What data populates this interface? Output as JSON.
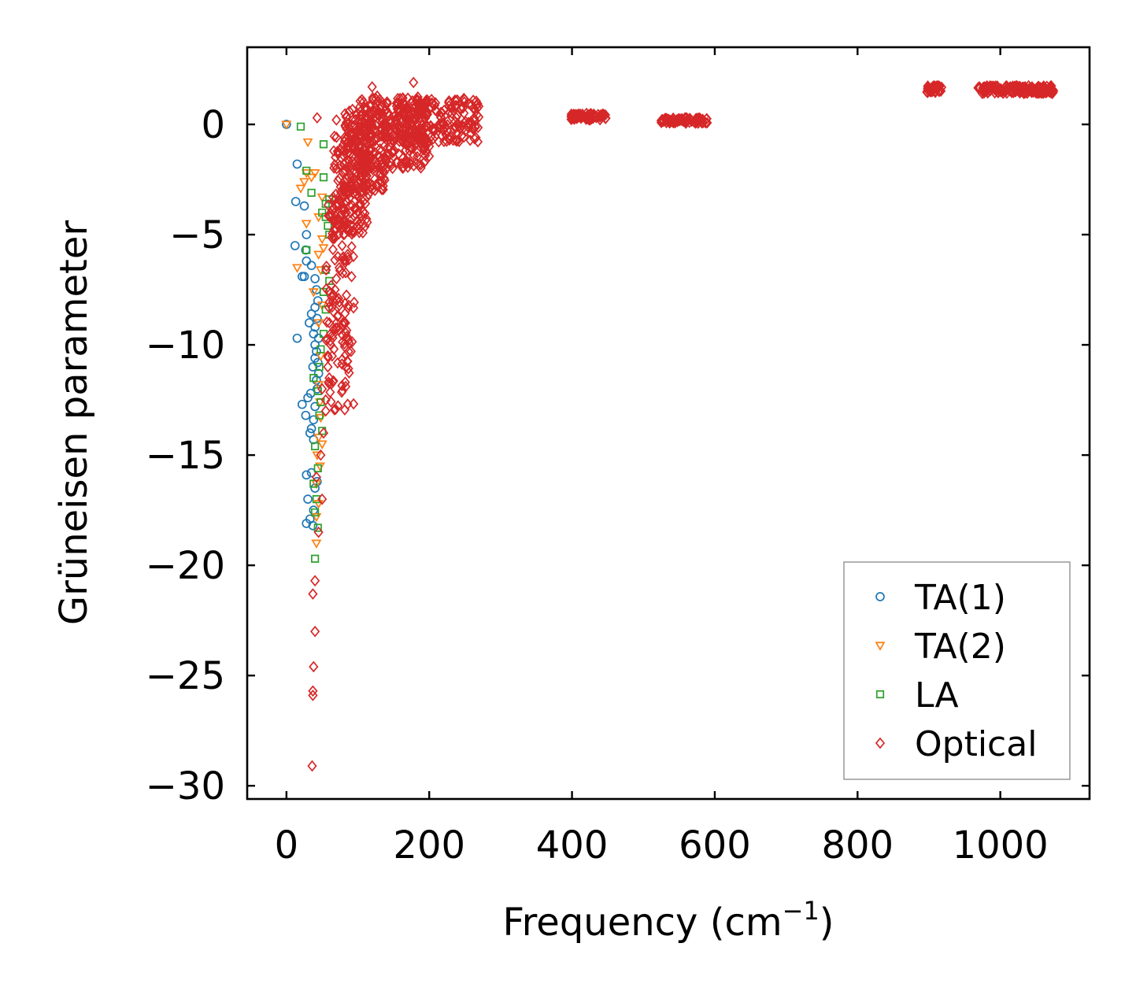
{
  "chart_data": {
    "type": "scatter",
    "title": "",
    "xlabel": "Frequency (cm",
    "xlabel_sup": "−1",
    "xlabel_end": ")",
    "ylabel": "Grüneisen parameter",
    "xlim": [
      -55,
      1125
    ],
    "ylim": [
      -30.6,
      3.5
    ],
    "xticks": [
      0,
      200,
      400,
      600,
      800,
      1000
    ],
    "xtick_labels": [
      "0",
      "200",
      "400",
      "600",
      "800",
      "1000"
    ],
    "yticks": [
      0,
      -5,
      -10,
      -15,
      -20,
      -25,
      -30
    ],
    "ytick_labels": [
      "0",
      "−5",
      "−10",
      "−15",
      "−20",
      "−25",
      "−30"
    ],
    "grid": false,
    "legend_position": "lower-right",
    "series": [
      {
        "name": "TA(1)",
        "label": "TA(1)",
        "color": "#1f77b4",
        "marker": "circle",
        "points": [
          [
            0,
            0
          ],
          [
            15,
            -1.8
          ],
          [
            13,
            -3.5
          ],
          [
            25,
            -3.7
          ],
          [
            28,
            -5.0
          ],
          [
            12,
            -5.5
          ],
          [
            27,
            -5.7
          ],
          [
            28,
            -6.2
          ],
          [
            35,
            -6.4
          ],
          [
            22,
            -6.9
          ],
          [
            25,
            -6.9
          ],
          [
            40,
            -7.0
          ],
          [
            42,
            -7.5
          ],
          [
            44,
            -8.0
          ],
          [
            40,
            -8.3
          ],
          [
            35,
            -8.6
          ],
          [
            43,
            -8.8
          ],
          [
            32,
            -9.0
          ],
          [
            40,
            -9.2
          ],
          [
            38,
            -9.5
          ],
          [
            45,
            -9.7
          ],
          [
            15,
            -9.7
          ],
          [
            40,
            -10.0
          ],
          [
            42,
            -10.3
          ],
          [
            40,
            -10.6
          ],
          [
            44,
            -10.8
          ],
          [
            37,
            -11.0
          ],
          [
            45,
            -11.3
          ],
          [
            42,
            -11.6
          ],
          [
            43,
            -12.0
          ],
          [
            34,
            -12.2
          ],
          [
            30,
            -12.4
          ],
          [
            22,
            -12.7
          ],
          [
            40,
            -12.8
          ],
          [
            27,
            -13.2
          ],
          [
            38,
            -13.4
          ],
          [
            35,
            -13.8
          ],
          [
            33,
            -14.0
          ],
          [
            38,
            -14.3
          ],
          [
            28,
            -15.9
          ],
          [
            35,
            -15.8
          ],
          [
            43,
            -16.2
          ],
          [
            40,
            -16.5
          ],
          [
            30,
            -17.0
          ],
          [
            38,
            -17.5
          ],
          [
            28,
            -18.1
          ],
          [
            33,
            -17.9
          ],
          [
            37,
            -18.2
          ]
        ]
      },
      {
        "name": "TA(2)",
        "label": "TA(2)",
        "color": "#ff7f0e",
        "marker": "triangle-down",
        "points": [
          [
            0,
            0
          ],
          [
            30,
            -0.8
          ],
          [
            28,
            -2.2
          ],
          [
            35,
            -2.4
          ],
          [
            25,
            -2.6
          ],
          [
            20,
            -2.9
          ],
          [
            40,
            -2.2
          ],
          [
            50,
            -3.3
          ],
          [
            45,
            -4.2
          ],
          [
            28,
            -4.5
          ],
          [
            50,
            -5.2
          ],
          [
            52,
            -5.6
          ],
          [
            45,
            -5.9
          ],
          [
            15,
            -6.5
          ],
          [
            48,
            -6.6
          ],
          [
            38,
            -7.6
          ],
          [
            50,
            -8.2
          ],
          [
            45,
            -9.0
          ],
          [
            48,
            -10.5
          ],
          [
            45,
            -11.8
          ],
          [
            47,
            -12.6
          ],
          [
            48,
            -13.3
          ],
          [
            45,
            -14.2
          ],
          [
            50,
            -14.5
          ],
          [
            43,
            -15.0
          ],
          [
            47,
            -15.5
          ],
          [
            42,
            -16.3
          ],
          [
            45,
            -17.2
          ],
          [
            42,
            -17.8
          ],
          [
            42,
            -19.0
          ]
        ]
      },
      {
        "name": "LA",
        "label": "LA",
        "color": "#2ca02c",
        "marker": "square",
        "points": [
          [
            20,
            -0.1
          ],
          [
            52,
            -0.9
          ],
          [
            28,
            -2.1
          ],
          [
            52,
            -2.4
          ],
          [
            35,
            -3.1
          ],
          [
            60,
            -3.4
          ],
          [
            55,
            -3.6
          ],
          [
            50,
            -4.0
          ],
          [
            55,
            -4.2
          ],
          [
            58,
            -4.6
          ],
          [
            60,
            -5.0
          ],
          [
            28,
            -5.7
          ],
          [
            55,
            -6.6
          ],
          [
            60,
            -7.1
          ],
          [
            52,
            -7.6
          ],
          [
            55,
            -8.4
          ],
          [
            52,
            -9.5
          ],
          [
            48,
            -10.2
          ],
          [
            46,
            -11.0
          ],
          [
            38,
            -11.5
          ],
          [
            44,
            -12.1
          ],
          [
            48,
            -12.6
          ],
          [
            46,
            -13.2
          ],
          [
            50,
            -13.9
          ],
          [
            40,
            -14.6
          ],
          [
            44,
            -15.6
          ],
          [
            38,
            -16.3
          ],
          [
            42,
            -17.0
          ],
          [
            40,
            -17.6
          ],
          [
            44,
            -18.3
          ],
          [
            40,
            -19.7
          ]
        ]
      },
      {
        "name": "Optical",
        "label": "Optical",
        "color": "#d62728",
        "marker": "diamond",
        "points": [
          [
            43,
            0.3
          ],
          [
            70,
            0.2
          ],
          [
            120,
            1.7
          ],
          [
            178,
            1.9
          ],
          [
            88,
            0.6
          ],
          [
            40,
            -20.7
          ],
          [
            37,
            -21.3
          ],
          [
            40,
            -23.0
          ],
          [
            38,
            -24.6
          ],
          [
            37,
            -25.7
          ],
          [
            37,
            -25.9
          ],
          [
            36,
            -29.1
          ],
          [
            45,
            -18.5
          ],
          [
            50,
            -17.0
          ],
          [
            42,
            -16.0
          ],
          [
            48,
            -15.0
          ],
          [
            52,
            -14.0
          ],
          [
            55,
            -13.0
          ],
          [
            50,
            -12.0
          ],
          [
            58,
            -11.0
          ],
          [
            62,
            -10.0
          ],
          [
            60,
            -9.0
          ],
          [
            65,
            -8.0
          ],
          [
            70,
            -7.0
          ],
          [
            72,
            -6.0
          ],
          [
            80,
            -5.0
          ],
          [
            85,
            -4.5
          ],
          [
            90,
            -4.0
          ],
          [
            95,
            -3.5
          ],
          [
            100,
            -3.0
          ],
          [
            60,
            -11.5
          ],
          [
            55,
            -12.5
          ],
          [
            58,
            -10.5
          ],
          [
            62,
            -9.5
          ],
          [
            66,
            -8.5
          ],
          [
            68,
            -7.5
          ],
          [
            74,
            -6.5
          ],
          [
            78,
            -5.5
          ],
          [
            140,
            -2.0
          ],
          [
            130,
            -1.5
          ],
          [
            160,
            -0.5
          ],
          [
            200,
            -1.0
          ]
        ],
        "bands": [
          {
            "x_range": [
              55,
              95
            ],
            "y_range": [
              -13.0,
              -3.0
            ],
            "count": 140
          },
          {
            "x_range": [
              65,
              115
            ],
            "y_range": [
              -5.0,
              -0.5
            ],
            "count": 150
          },
          {
            "x_range": [
              80,
              140
            ],
            "y_range": [
              -3.0,
              0.8
            ],
            "count": 180
          },
          {
            "x_range": [
              100,
              200
            ],
            "y_range": [
              -2.0,
              1.3
            ],
            "count": 230
          },
          {
            "x_range": [
              150,
              270
            ],
            "y_range": [
              -0.8,
              1.2
            ],
            "count": 200
          },
          {
            "x_range": [
              398,
              448
            ],
            "y_range": [
              0.2,
              0.5
            ],
            "count": 70
          },
          {
            "x_range": [
              525,
              590
            ],
            "y_range": [
              0.05,
              0.3
            ],
            "count": 80
          },
          {
            "x_range": [
              897,
              918
            ],
            "y_range": [
              1.45,
              1.75
            ],
            "count": 35
          },
          {
            "x_range": [
              968,
              1075
            ],
            "y_range": [
              1.4,
              1.75
            ],
            "count": 170
          }
        ]
      }
    ]
  }
}
